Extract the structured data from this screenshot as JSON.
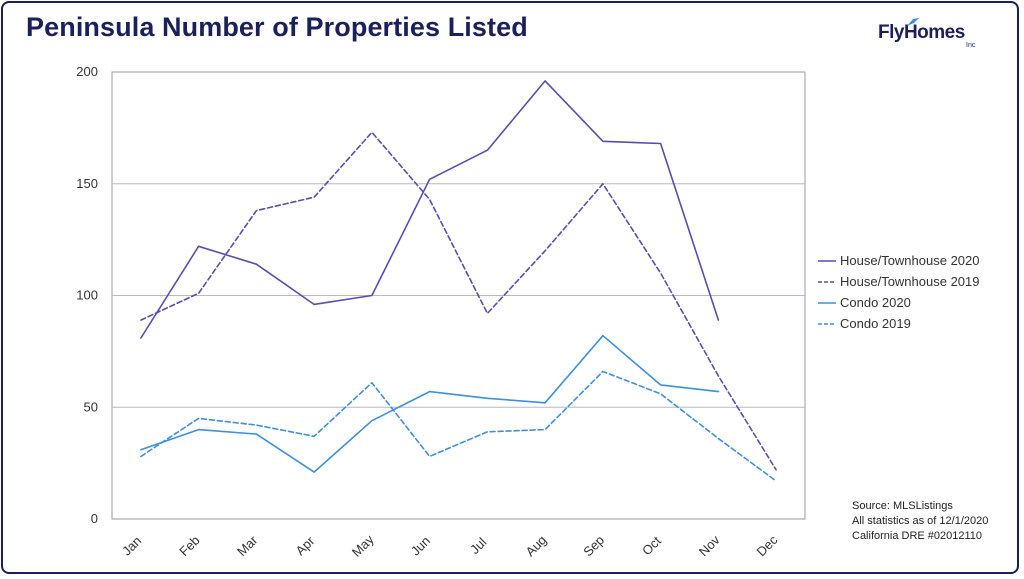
{
  "header": {
    "title": "Peninsula Number of Properties Listed"
  },
  "logo": {
    "text": "FlyHomes",
    "sub": "Inc"
  },
  "source": {
    "line1": "Source: MLSListings",
    "line2": "All statistics as of 12/1/2020",
    "line3": "California DRE #02012110"
  },
  "colors": {
    "dark_purple": "#5b4bb4",
    "light_blue": "#3d8fe0",
    "grid": "#b8b8c8",
    "title": "#1b1f5c"
  },
  "chart_data": {
    "type": "line",
    "title": "Peninsula Number of Properties Listed",
    "xlabel": "",
    "ylabel": "",
    "categories": [
      "Jan",
      "Feb",
      "Mar",
      "Apr",
      "May",
      "Jun",
      "Jul",
      "Aug",
      "Sep",
      "Oct",
      "Nov",
      "Dec"
    ],
    "ylim": [
      0,
      200
    ],
    "yticks": [
      0,
      50,
      100,
      150,
      200
    ],
    "grid": true,
    "legend_position": "right",
    "series": [
      {
        "name": "House/Townhouse 2020",
        "color": "#5b4bb4",
        "dashed": false,
        "values": [
          81,
          122,
          114,
          96,
          100,
          152,
          165,
          196,
          169,
          168,
          89,
          null
        ]
      },
      {
        "name": "House/Townhouse 2019",
        "color": "#5b4bb4",
        "dashed": true,
        "values": [
          89,
          101,
          138,
          144,
          173,
          143,
          92,
          120,
          150,
          110,
          64,
          22
        ]
      },
      {
        "name": "Condo 2020",
        "color": "#3d8fe0",
        "dashed": false,
        "values": [
          31,
          40,
          38,
          21,
          44,
          57,
          54,
          52,
          82,
          60,
          57,
          null
        ]
      },
      {
        "name": "Condo 2019",
        "color": "#3d8fe0",
        "dashed": true,
        "values": [
          28,
          45,
          42,
          37,
          61,
          28,
          39,
          40,
          66,
          56,
          36,
          17
        ]
      }
    ]
  }
}
